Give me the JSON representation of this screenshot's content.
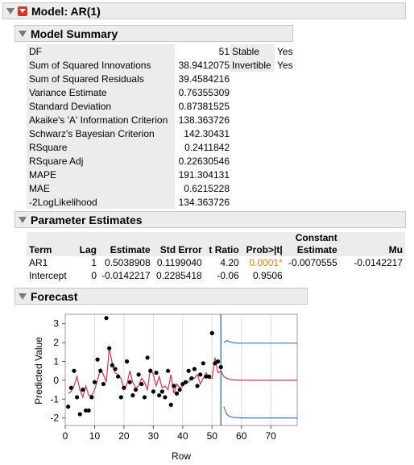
{
  "model": {
    "title": "Model: AR(1)"
  },
  "summary": {
    "title": "Model Summary",
    "rows": [
      {
        "label": "DF",
        "value": "51"
      },
      {
        "label": "Sum of Squared Innovations",
        "value": "38.9412075"
      },
      {
        "label": "Sum of Squared Residuals",
        "value": "39.4584216"
      },
      {
        "label": "Variance Estimate",
        "value": "0.76355309"
      },
      {
        "label": "Standard Deviation",
        "value": "0.87381525"
      },
      {
        "label": "Akaike's 'A' Information Criterion",
        "value": "138.363726"
      },
      {
        "label": "Schwarz's Bayesian Criterion",
        "value": "142.30431"
      },
      {
        "label": "RSquare",
        "value": "0.2411842"
      },
      {
        "label": "RSquare Adj",
        "value": "0.22630546"
      },
      {
        "label": "MAPE",
        "value": "191.304131"
      },
      {
        "label": "MAE",
        "value": "0.6215228"
      },
      {
        "label": "-2LogLikelihood",
        "value": "134.363726"
      }
    ],
    "flags": [
      {
        "label": "Stable",
        "value": "Yes"
      },
      {
        "label": "Invertible",
        "value": "Yes"
      }
    ]
  },
  "params": {
    "title": "Parameter Estimates",
    "headers": {
      "term": "Term",
      "lag": "Lag",
      "estimate": "Estimate",
      "stderr": "Std Error",
      "tratio": "t Ratio",
      "prob": "Prob>|t|",
      "const1": "Constant",
      "const2": "Estimate",
      "mu": "Mu"
    },
    "rows": [
      {
        "term": "AR1",
        "lag": "1",
        "estimate": "0.5038908",
        "stderr": "0.1199040",
        "tratio": "4.20",
        "prob": "0.0001*",
        "const": "-0.0070555",
        "mu": "-0.0142217"
      },
      {
        "term": "Intercept",
        "lag": "0",
        "estimate": "-0.0142217",
        "stderr": "0.2285418",
        "tratio": "-0.06",
        "prob": "0.9506",
        "const": "",
        "mu": ""
      }
    ]
  },
  "forecast": {
    "title": "Forecast"
  },
  "colors": {
    "fit": "#e0304a",
    "band": "#3a6fe8",
    "divider": "#1f5fa8",
    "points": "#000000",
    "pvalue": "#e8800c"
  },
  "chart_data": {
    "type": "line",
    "xlabel": "Row",
    "ylabel": "Predicted Value",
    "xlim": [
      0,
      79
    ],
    "ylim": [
      -2.4,
      3.5
    ],
    "xticks": [
      0,
      10,
      20,
      30,
      40,
      50,
      60,
      70
    ],
    "yticks": [
      -2,
      -1,
      0,
      1,
      2,
      3
    ],
    "forecast_origin": 53,
    "actual": [
      [
        1,
        -1.4
      ],
      [
        2,
        -0.4
      ],
      [
        3,
        0.5
      ],
      [
        4,
        -0.9
      ],
      [
        5,
        -1.8
      ],
      [
        6,
        -0.5
      ],
      [
        7,
        -1.6
      ],
      [
        8,
        -1.6
      ],
      [
        9,
        -0.9
      ],
      [
        10,
        -0.1
      ],
      [
        11,
        1.1
      ],
      [
        12,
        0.5
      ],
      [
        13,
        -0.2
      ],
      [
        14,
        3.3
      ],
      [
        15,
        1.7
      ],
      [
        16,
        0.8
      ],
      [
        17,
        0.6
      ],
      [
        18,
        0.2
      ],
      [
        19,
        -0.9
      ],
      [
        20,
        -0.4
      ],
      [
        21,
        1.0
      ],
      [
        22,
        -0.1
      ],
      [
        23,
        -0.8
      ],
      [
        24,
        -0.5
      ],
      [
        25,
        0.3
      ],
      [
        26,
        -0.2
      ],
      [
        27,
        -0.9
      ],
      [
        28,
        1.2
      ],
      [
        29,
        0.5
      ],
      [
        30,
        -0.6
      ],
      [
        31,
        0.4
      ],
      [
        32,
        -0.8
      ],
      [
        33,
        -0.6
      ],
      [
        34,
        -0.9
      ],
      [
        35,
        0.5
      ],
      [
        36,
        -1.3
      ],
      [
        37,
        -0.3
      ],
      [
        38,
        -0.7
      ],
      [
        39,
        -0.5
      ],
      [
        40,
        -0.2
      ],
      [
        41,
        -0.1
      ],
      [
        42,
        0.5
      ],
      [
        43,
        0.1
      ],
      [
        44,
        0.6
      ],
      [
        45,
        -0.3
      ],
      [
        46,
        0.3
      ],
      [
        47,
        0.9
      ],
      [
        48,
        0.2
      ],
      [
        49,
        0.2
      ],
      [
        50,
        2.5
      ],
      [
        51,
        0.9
      ],
      [
        52,
        1.0
      ],
      [
        53,
        0.7
      ]
    ],
    "fitted": [
      [
        1,
        -0.7
      ],
      [
        2,
        -0.6
      ],
      [
        3,
        -0.3
      ],
      [
        4,
        0.2
      ],
      [
        5,
        -0.5
      ],
      [
        6,
        -0.9
      ],
      [
        7,
        -0.3
      ],
      [
        8,
        -0.8
      ],
      [
        9,
        -0.8
      ],
      [
        10,
        -0.5
      ],
      [
        11,
        0.0
      ],
      [
        12,
        0.6
      ],
      [
        13,
        0.3
      ],
      [
        14,
        -0.1
      ],
      [
        15,
        1.7
      ],
      [
        16,
        0.9
      ],
      [
        17,
        0.4
      ],
      [
        18,
        0.3
      ],
      [
        19,
        0.1
      ],
      [
        20,
        -0.5
      ],
      [
        21,
        -0.2
      ],
      [
        22,
        0.5
      ],
      [
        23,
        -0.1
      ],
      [
        24,
        -0.4
      ],
      [
        25,
        -0.3
      ],
      [
        26,
        0.1
      ],
      [
        27,
        -0.1
      ],
      [
        28,
        -0.5
      ],
      [
        29,
        0.6
      ],
      [
        30,
        0.3
      ],
      [
        31,
        -0.3
      ],
      [
        32,
        0.2
      ],
      [
        33,
        -0.4
      ],
      [
        34,
        -0.3
      ],
      [
        35,
        -0.5
      ],
      [
        36,
        0.3
      ],
      [
        37,
        -0.7
      ],
      [
        38,
        -0.2
      ],
      [
        39,
        -0.4
      ],
      [
        40,
        -0.3
      ],
      [
        41,
        -0.1
      ],
      [
        42,
        -0.1
      ],
      [
        43,
        0.2
      ],
      [
        44,
        0.1
      ],
      [
        45,
        0.3
      ],
      [
        46,
        -0.2
      ],
      [
        47,
        0.1
      ],
      [
        48,
        0.4
      ],
      [
        49,
        0.1
      ],
      [
        50,
        0.1
      ],
      [
        51,
        1.2
      ],
      [
        52,
        0.4
      ],
      [
        53,
        0.5
      ],
      [
        54,
        0.2
      ],
      [
        55,
        0.1
      ],
      [
        56,
        0.05
      ],
      [
        57,
        0.02
      ],
      [
        60,
        0.0
      ],
      [
        79,
        0.0
      ]
    ],
    "upper": [
      [
        54,
        2.0
      ],
      [
        55,
        2.1
      ],
      [
        56,
        2.05
      ],
      [
        57,
        2.0
      ],
      [
        58,
        1.98
      ],
      [
        60,
        1.97
      ],
      [
        79,
        1.97
      ]
    ],
    "lower": [
      [
        54,
        -1.4
      ],
      [
        55,
        -1.8
      ],
      [
        56,
        -1.92
      ],
      [
        57,
        -1.96
      ],
      [
        58,
        -1.98
      ],
      [
        60,
        -2.0
      ],
      [
        79,
        -2.0
      ]
    ]
  }
}
